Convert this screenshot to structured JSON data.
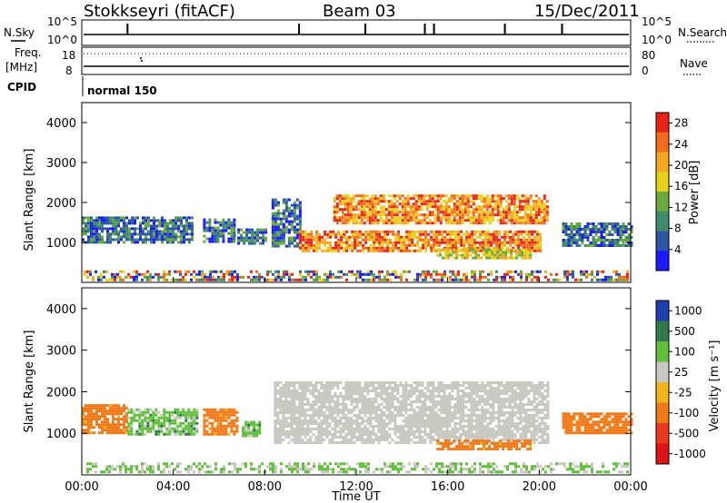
{
  "header": {
    "station": "Stokkseyri (fitACF)",
    "beam": "Beam 03",
    "date": "15/Dec/2011"
  },
  "noise_panel": {
    "left_label": "N.Sky",
    "right_label": "N.Search",
    "left_ticks": [
      "10^5",
      "10^0"
    ],
    "right_ticks": [
      "10^5",
      "10^0"
    ]
  },
  "freq_panel": {
    "left_label_1": "Freq.",
    "left_label_2": "[MHz]",
    "right_label": "Nave",
    "left_ticks": [
      "18",
      "8"
    ],
    "right_ticks": [
      "80",
      "0"
    ]
  },
  "cpid": {
    "label": "CPID",
    "mode": "normal 150"
  },
  "colors": {
    "power": [
      "#1a1aff",
      "#2f54a8",
      "#3f8c6a",
      "#6aaa3a",
      "#e6d21c",
      "#f5a623",
      "#f26a1b",
      "#e8241a"
    ],
    "velocity": [
      "#1f3fb0",
      "#2e7a4a",
      "#5fbf3a",
      "#c8c8c0",
      "#f2b41c",
      "#f07a1a",
      "#e83a1a",
      "#e01414"
    ]
  },
  "chart_data": [
    {
      "type": "heatmap",
      "quantity": "power",
      "xlabel": "",
      "ylabel": "Slant Range [km]",
      "xlim": [
        "00:00",
        "24:00"
      ],
      "ylim": [
        0,
        4500
      ],
      "y_ticks": [
        "1000",
        "2000",
        "3000",
        "4000"
      ],
      "colorbar": {
        "label": "Power [dB]",
        "ticks": [
          "4",
          "8",
          "12",
          "16",
          "20",
          "24",
          "28"
        ],
        "range": [
          0,
          30
        ]
      },
      "regions": [
        {
          "t": [
            0.0,
            4.8
          ],
          "r": [
            1000,
            1650
          ],
          "level": "low"
        },
        {
          "t": [
            5.3,
            6.7
          ],
          "r": [
            1000,
            1600
          ],
          "level": "low"
        },
        {
          "t": [
            6.8,
            8.1
          ],
          "r": [
            950,
            1350
          ],
          "level": "low"
        },
        {
          "t": [
            8.3,
            9.5
          ],
          "r": [
            900,
            2100
          ],
          "level": "low"
        },
        {
          "t": [
            9.5,
            20.0
          ],
          "r": [
            800,
            1300
          ],
          "level": "high"
        },
        {
          "t": [
            11.0,
            20.3
          ],
          "r": [
            1450,
            2200
          ],
          "level": "high"
        },
        {
          "t": [
            15.5,
            19.6
          ],
          "r": [
            600,
            850
          ],
          "level": "mid"
        },
        {
          "t": [
            21.0,
            24.0
          ],
          "r": [
            950,
            1500
          ],
          "level": "low"
        }
      ]
    },
    {
      "type": "heatmap",
      "quantity": "velocity",
      "xlabel": "Time UT",
      "ylabel": "Slant Range [km]",
      "xlim": [
        "00:00",
        "24:00"
      ],
      "ylim": [
        0,
        4500
      ],
      "x_ticks": [
        "00:00",
        "04:00",
        "08:00",
        "12:00",
        "16:00",
        "20:00",
        "00:00"
      ],
      "y_ticks": [
        "1000",
        "2000",
        "3000",
        "4000"
      ],
      "colorbar": {
        "label": "Velocity [m s⁻¹]",
        "ticks": [
          "1000",
          "500",
          "100",
          "25",
          "-25",
          "-100",
          "-500",
          "-1000"
        ]
      },
      "regions": [
        {
          "t": [
            0.0,
            2.0
          ],
          "r": [
            1000,
            1700
          ],
          "v": -150
        },
        {
          "t": [
            2.0,
            5.0
          ],
          "r": [
            1000,
            1600
          ],
          "v": 60
        },
        {
          "t": [
            5.3,
            6.8
          ],
          "r": [
            1000,
            1600
          ],
          "v": -150
        },
        {
          "t": [
            7.0,
            7.8
          ],
          "r": [
            950,
            1300
          ],
          "v": 60
        },
        {
          "t": [
            8.4,
            20.4
          ],
          "r": [
            800,
            2250
          ],
          "v": 0
        },
        {
          "t": [
            15.5,
            19.6
          ],
          "r": [
            600,
            850
          ],
          "v": -150
        },
        {
          "t": [
            21.0,
            24.0
          ],
          "r": [
            1000,
            1500
          ],
          "v": -300
        }
      ]
    }
  ]
}
